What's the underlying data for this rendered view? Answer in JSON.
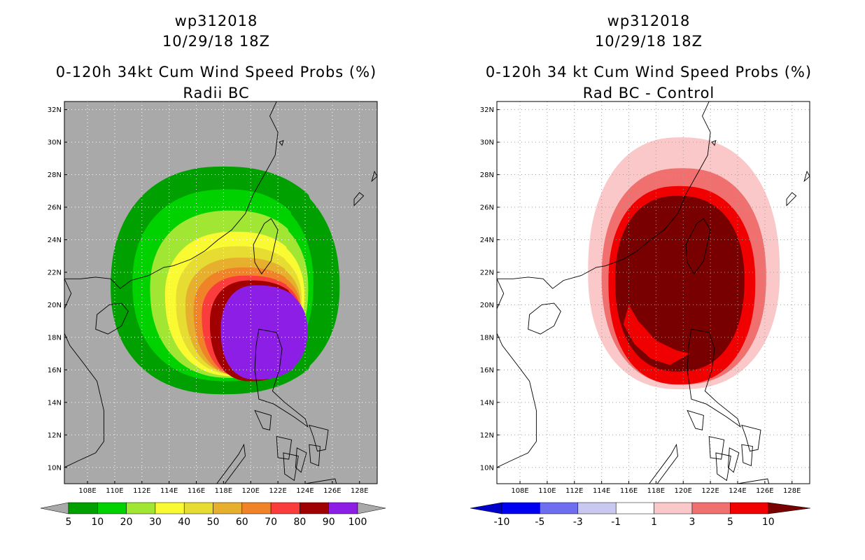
{
  "left_panel": {
    "title1": "wp312018",
    "title2": "10/29/18 18Z",
    "title3": "0-120h 34kt Cum Wind Speed Probs (%)",
    "title4": "Radii BC"
  },
  "right_panel": {
    "title1": "wp312018",
    "title2": "10/29/18 18Z",
    "title3": "0-120h 34 kt Cum Wind Speed Probs (%)",
    "title4": "Rad BC - Control"
  },
  "chart_data": [
    {
      "type": "heatmap",
      "title": "0-120h 34kt Cum Wind Speed Probs (%)",
      "subtitle": "Radii BC",
      "storm": "wp312018",
      "time": "10/29/18 18Z",
      "x_ticks": [
        "108E",
        "110E",
        "112E",
        "114E",
        "116E",
        "118E",
        "120E",
        "122E",
        "124E",
        "126E",
        "128E"
      ],
      "y_ticks": [
        "10N",
        "12N",
        "14N",
        "16N",
        "18N",
        "20N",
        "22N",
        "24N",
        "26N",
        "28N",
        "30N",
        "32N"
      ],
      "xlim": [
        106.3,
        129.3
      ],
      "ylim": [
        9.0,
        32.5
      ],
      "colorbar": {
        "levels": [
          "5",
          "10",
          "20",
          "30",
          "40",
          "50",
          "60",
          "70",
          "80",
          "90",
          "100"
        ],
        "colors": [
          "#00a000",
          "#00d200",
          "#a0e632",
          "#fafa32",
          "#e6dc32",
          "#e6af2d",
          "#f08228",
          "#fa3c3c",
          "#a00000",
          "#8c1ee6"
        ]
      },
      "contours": [
        {
          "level": 5,
          "color": "#00a000",
          "center": [
            118.0,
            21.1
          ],
          "extent": [
            -8.3,
            8.8,
            -6.6,
            7.4
          ]
        },
        {
          "level": 10,
          "color": "#00d200",
          "center": [
            118.3,
            21.3
          ],
          "extent": [
            -7.0,
            6.5,
            -6.0,
            5.8
          ]
        },
        {
          "level": 20,
          "color": "#a0e632",
          "center": [
            118.6,
            21.0
          ],
          "extent": [
            -6.0,
            5.8,
            -5.5,
            4.8
          ]
        },
        {
          "level": 30,
          "color": "#fafa32",
          "center": [
            118.9,
            20.6
          ],
          "extent": [
            -5.2,
            5.2,
            -5.0,
            3.9
          ]
        },
        {
          "level": 40,
          "color": "#e6dc32",
          "center": [
            119.1,
            20.3
          ],
          "extent": [
            -4.6,
            4.8,
            -4.6,
            3.3
          ]
        },
        {
          "level": 50,
          "color": "#e6af2d",
          "center": [
            119.3,
            20.0
          ],
          "extent": [
            -4.1,
            4.5,
            -4.3,
            2.9
          ]
        },
        {
          "level": 60,
          "color": "#f08228",
          "center": [
            119.5,
            19.7
          ],
          "extent": [
            -3.7,
            4.3,
            -4.1,
            2.6
          ]
        },
        {
          "level": 70,
          "color": "#fa3c3c",
          "center": [
            119.7,
            19.4
          ],
          "extent": [
            -3.3,
            4.1,
            -3.9,
            2.4
          ]
        },
        {
          "level": 80,
          "color": "#a00000",
          "center": [
            120.0,
            18.9
          ],
          "extent": [
            -3.0,
            3.9,
            -3.6,
            2.6
          ]
        },
        {
          "level": 90,
          "color": "#8c1ee6",
          "center": [
            120.4,
            18.4
          ],
          "extent": [
            -2.6,
            3.9,
            -3.0,
            2.8
          ]
        }
      ]
    },
    {
      "type": "heatmap",
      "title": "0-120h 34 kt Cum Wind Speed Probs (%)",
      "subtitle": "Rad BC - Control",
      "storm": "wp312018",
      "time": "10/29/18 18Z",
      "x_ticks": [
        "108E",
        "110E",
        "112E",
        "114E",
        "116E",
        "118E",
        "120E",
        "122E",
        "124E",
        "126E",
        "128E"
      ],
      "y_ticks": [
        "10N",
        "12N",
        "14N",
        "16N",
        "18N",
        "20N",
        "22N",
        "24N",
        "26N",
        "28N",
        "30N",
        "32N"
      ],
      "xlim": [
        106.3,
        129.3
      ],
      "ylim": [
        9.0,
        32.5
      ],
      "colorbar": {
        "levels": [
          "-10",
          "-5",
          "-3",
          "-1",
          "1",
          "3",
          "5",
          "10"
        ],
        "colors": [
          "#0000c8",
          "#0000f0",
          "#6e6ef0",
          "#c8c8f0",
          "#ffffff",
          "#fac8c8",
          "#f07070",
          "#f00000",
          "#780000"
        ]
      },
      "contours": [
        {
          "level": 1,
          "color": "#fac8c8",
          "center": [
            119.8,
            22.0
          ],
          "extent": [
            -6.8,
            7.3,
            -7.2,
            8.3
          ]
        },
        {
          "level": 3,
          "color": "#f07070",
          "center": [
            119.9,
            21.7
          ],
          "extent": [
            -5.9,
            6.2,
            -6.6,
            6.7
          ]
        },
        {
          "level": 5,
          "color": "#f00000",
          "center": [
            119.7,
            21.4
          ],
          "extent": [
            -5.2,
            5.6,
            -6.3,
            5.9
          ]
        },
        {
          "level": 10,
          "color": "#780000",
          "center": [
            119.6,
            21.5
          ],
          "extent": [
            -4.6,
            4.9,
            -5.6,
            5.2
          ]
        }
      ]
    }
  ]
}
